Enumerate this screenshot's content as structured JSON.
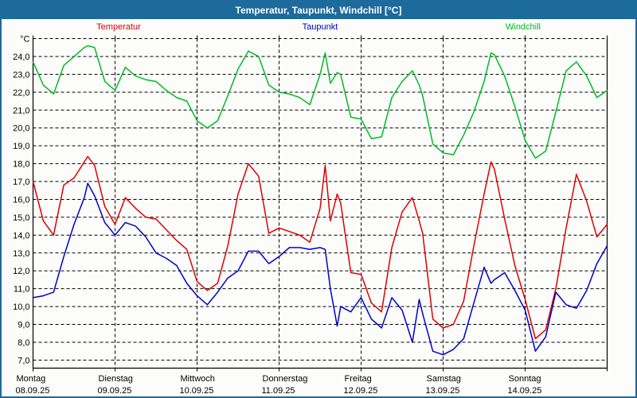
{
  "window": {
    "title": "Temperatur, Taupunkt, Windchill [°C]"
  },
  "colors": {
    "frame": "#1d6a9c",
    "title_text": "#ffffff",
    "background": "#fcfdfa",
    "grid": "#000000",
    "temperatur": "#dd0000",
    "taupunkt": "#0000cd",
    "windchill": "#00bb22"
  },
  "legend": {
    "items": [
      {
        "label": "Temperatur",
        "color_key": "temperatur"
      },
      {
        "label": "Taupunkt",
        "color_key": "taupunkt"
      },
      {
        "label": "Windchill",
        "color_key": "windchill"
      }
    ]
  },
  "chart_data": {
    "type": "line",
    "title": "Temperatur, Taupunkt, Windchill [°C]",
    "ylabel": "",
    "xlabel": "",
    "y_unit_label": "°C",
    "ylim": [
      6.55,
      25.0
    ],
    "y_grid_step": 1.0,
    "y_tick_labels": [
      "24,0",
      "23,0",
      "22,0",
      "21,0",
      "20,0",
      "19,0",
      "18,0",
      "17,0",
      "16,0",
      "15,0",
      "14,0",
      "13,0",
      "12,0",
      "11,0",
      "10,0",
      "9,0",
      "8,0",
      "7,0"
    ],
    "grid": "dashed",
    "legend_position": "top",
    "x_total_hours": 168,
    "day_step_hours": 24,
    "days": [
      {
        "name": "Montag",
        "date": "08.09.25"
      },
      {
        "name": "Dienstag",
        "date": "09.09.25"
      },
      {
        "name": "Mittwoch",
        "date": "10.09.25"
      },
      {
        "name": "Donnerstag",
        "date": "11.09.25"
      },
      {
        "name": "Freitag",
        "date": "12.09.25"
      },
      {
        "name": "Samstag",
        "date": "13.09.25"
      },
      {
        "name": "Sonntag",
        "date": "14.09.25"
      }
    ],
    "x_hours": [
      0,
      3,
      6,
      9,
      12,
      15,
      16,
      18,
      21,
      24,
      27,
      30,
      33,
      36,
      39,
      42,
      45,
      48,
      51,
      54,
      57,
      60,
      63,
      66,
      69,
      72,
      75,
      78,
      81,
      84,
      85.5,
      87,
      89,
      90,
      93,
      96,
      99,
      102,
      105,
      108,
      111,
      113,
      114,
      117,
      120,
      123,
      126,
      129,
      132,
      134,
      135,
      138,
      141,
      144,
      147,
      150,
      153,
      156,
      159,
      162,
      165,
      168
    ],
    "series": [
      {
        "name": "Temperatur",
        "color_key": "temperatur",
        "values": [
          17.0,
          14.8,
          14.0,
          16.8,
          17.2,
          18.1,
          18.4,
          17.9,
          15.6,
          14.6,
          16.1,
          15.5,
          15.0,
          14.9,
          14.3,
          13.7,
          13.2,
          11.4,
          10.9,
          11.3,
          13.4,
          16.3,
          18.0,
          17.3,
          14.1,
          14.4,
          14.2,
          14.0,
          13.6,
          15.5,
          17.9,
          14.8,
          16.3,
          15.8,
          11.9,
          11.8,
          10.2,
          9.7,
          13.3,
          15.3,
          16.1,
          14.8,
          14.1,
          9.3,
          8.8,
          9.0,
          10.3,
          13.4,
          16.3,
          18.1,
          17.7,
          14.9,
          12.3,
          10.4,
          8.2,
          8.7,
          11.0,
          14.4,
          17.4,
          15.9,
          13.9,
          14.6
        ]
      },
      {
        "name": "Taupunkt",
        "color_key": "taupunkt",
        "values": [
          10.5,
          10.6,
          10.8,
          12.8,
          14.6,
          16.1,
          16.9,
          16.2,
          14.7,
          14.0,
          14.7,
          14.5,
          13.9,
          13.0,
          12.7,
          12.3,
          11.3,
          10.6,
          10.1,
          10.8,
          11.6,
          12.0,
          13.1,
          13.1,
          12.4,
          12.8,
          13.3,
          13.3,
          13.2,
          13.3,
          13.2,
          11.0,
          8.9,
          10.0,
          9.7,
          10.5,
          9.3,
          8.8,
          10.5,
          9.8,
          8.0,
          10.4,
          9.6,
          7.5,
          7.3,
          7.6,
          8.2,
          10.2,
          12.2,
          11.3,
          11.5,
          11.9,
          10.9,
          9.8,
          7.5,
          8.3,
          10.8,
          10.1,
          9.9,
          10.9,
          12.4,
          13.4
        ]
      },
      {
        "name": "Windchill",
        "color_key": "windchill",
        "values": [
          23.7,
          22.4,
          21.9,
          23.5,
          24.0,
          24.5,
          24.6,
          24.5,
          22.6,
          22.1,
          23.4,
          22.9,
          22.7,
          22.6,
          22.1,
          21.7,
          21.5,
          20.4,
          20.0,
          20.4,
          21.8,
          23.3,
          24.3,
          24.0,
          22.4,
          22.0,
          21.9,
          21.7,
          21.3,
          23.0,
          24.2,
          22.5,
          23.1,
          23.0,
          20.6,
          20.5,
          19.4,
          19.5,
          21.7,
          22.6,
          23.2,
          22.4,
          21.8,
          19.1,
          18.6,
          18.5,
          19.6,
          20.9,
          22.6,
          24.2,
          24.1,
          22.9,
          21.2,
          19.3,
          18.3,
          18.7,
          20.9,
          23.2,
          23.7,
          22.9,
          21.7,
          22.1
        ]
      }
    ]
  }
}
